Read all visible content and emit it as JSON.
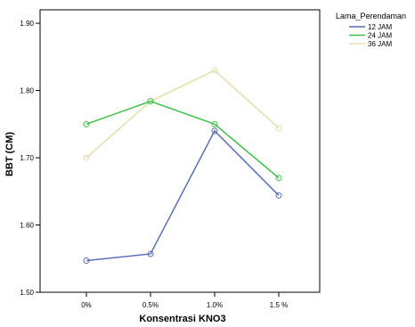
{
  "chart_data": {
    "type": "line",
    "xlabel": "Konsentrasi KNO3",
    "ylabel": "BBT (CM)",
    "categories": [
      "0%",
      "0.5%",
      "1.0%",
      "1.5 %"
    ],
    "ylim": [
      1.5,
      1.92
    ],
    "yticks": [
      "1.50",
      "1.60",
      "1.70",
      "1.80",
      "1.90"
    ],
    "grid": false,
    "legend_position": "top-right",
    "legend_title": "Lama_Perendaman",
    "series": [
      {
        "name": "12 JAM",
        "color": "#5b6fb5",
        "values": [
          1.547,
          1.557,
          1.74,
          1.644
        ]
      },
      {
        "name": "24 JAM",
        "color": "#3fbf4a",
        "values": [
          1.75,
          1.784,
          1.75,
          1.67
        ]
      },
      {
        "name": "36 JAM",
        "color": "#e3dfaa",
        "values": [
          1.7,
          1.784,
          1.83,
          1.744
        ]
      }
    ]
  }
}
